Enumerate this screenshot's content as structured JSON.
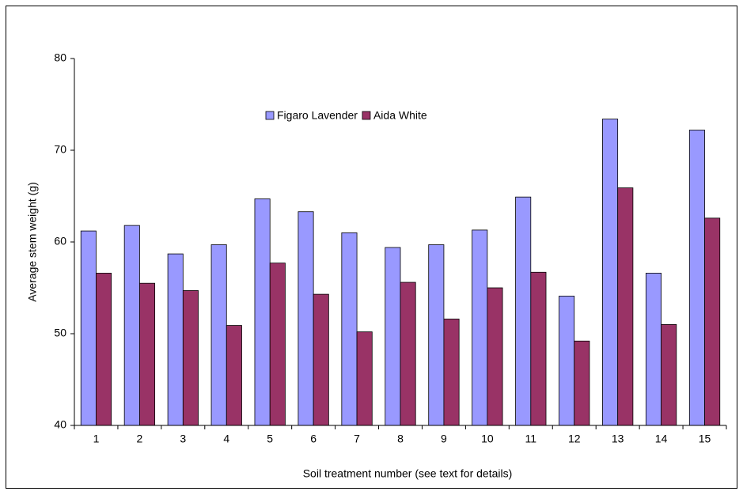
{
  "chart_data": {
    "type": "bar",
    "x_label": "Soil treatment number (see text for details)",
    "y_label": "Average stem weight (g)",
    "categories": [
      "1",
      "2",
      "3",
      "4",
      "5",
      "6",
      "7",
      "8",
      "9",
      "10",
      "11",
      "12",
      "13",
      "14",
      "15"
    ],
    "series": [
      {
        "name": "Figaro Lavender",
        "color": "#9999ff",
        "values": [
          61.2,
          61.8,
          58.7,
          59.7,
          64.7,
          63.3,
          61.0,
          59.4,
          59.7,
          61.3,
          64.9,
          54.1,
          73.4,
          56.6,
          72.2
        ]
      },
      {
        "name": "Aida White",
        "color": "#993366",
        "values": [
          56.6,
          55.5,
          54.7,
          50.9,
          57.7,
          54.3,
          50.2,
          55.6,
          51.6,
          55.0,
          56.7,
          49.2,
          65.9,
          51.0,
          62.6
        ]
      }
    ],
    "ylim": [
      40,
      80
    ],
    "yticks": [
      40,
      50,
      60,
      70,
      80
    ],
    "grid": false
  }
}
